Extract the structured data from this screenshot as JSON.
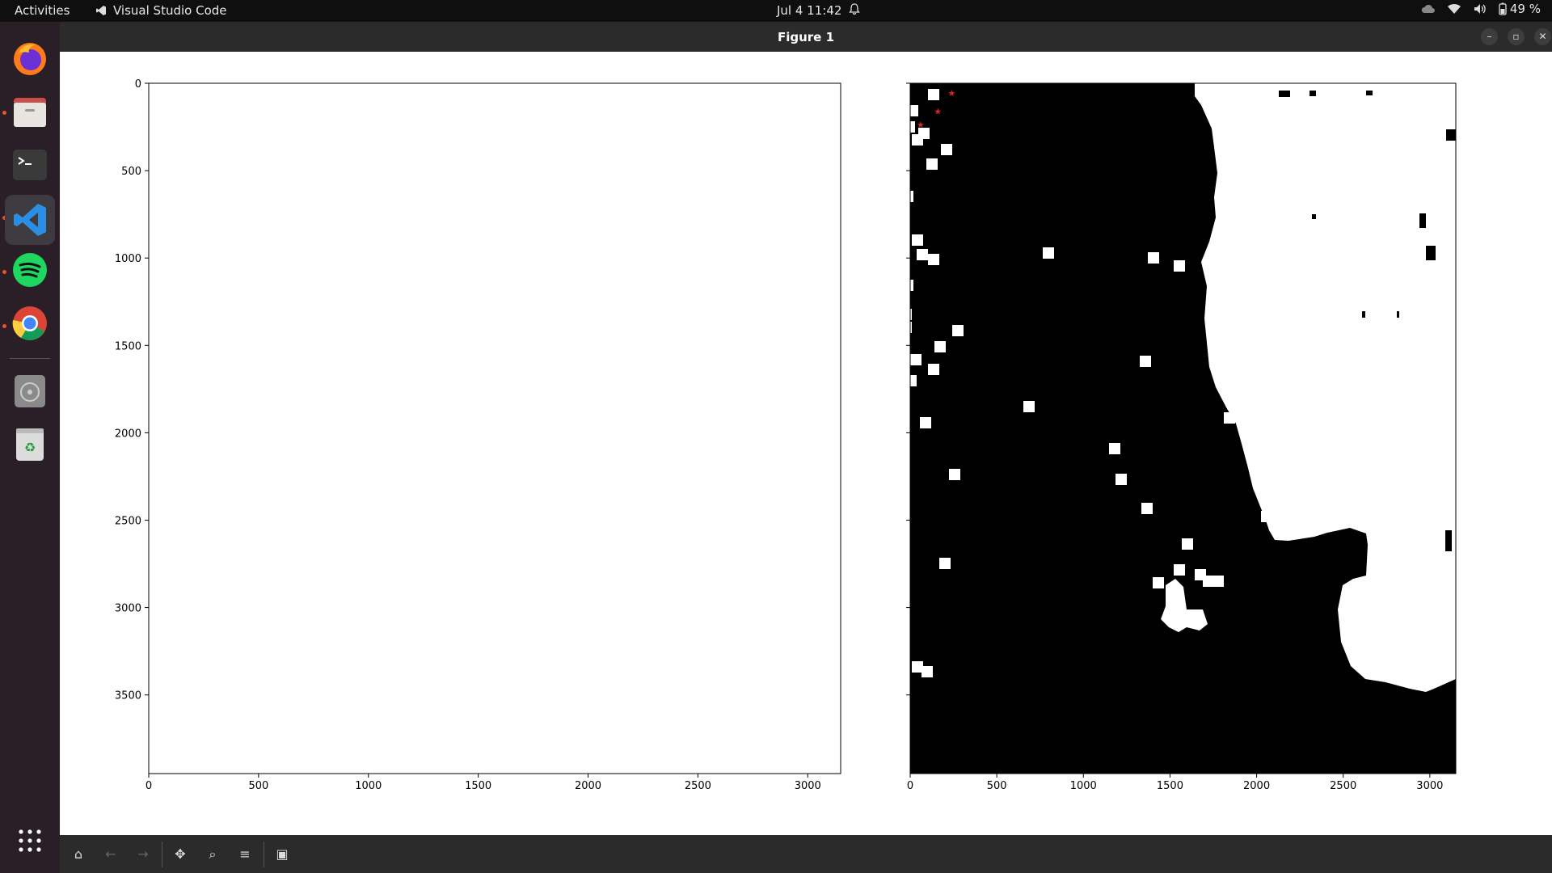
{
  "topbar": {
    "activities": "Activities",
    "app_name": "Visual Studio Code",
    "clock": "Jul 4  11:42",
    "battery": "49 %"
  },
  "dock": {
    "items": [
      {
        "icon": "firefox-icon",
        "running": true
      },
      {
        "icon": "files-icon",
        "running": true
      },
      {
        "icon": "terminal-icon",
        "running": false
      },
      {
        "icon": "vscode-icon",
        "running": true,
        "active": true
      },
      {
        "icon": "spotify-icon",
        "running": true
      },
      {
        "icon": "chrome-icon",
        "running": true
      },
      {
        "icon": "disc-icon",
        "running": false
      },
      {
        "icon": "trash-icon",
        "running": false
      }
    ],
    "apps_grid_icon": "apps-grid-icon"
  },
  "window": {
    "title": "Figure 1"
  },
  "chart_data": [
    {
      "type": "image",
      "xlim": [
        0,
        3150
      ],
      "ylim": [
        3950,
        0
      ],
      "x_ticks": [
        "0",
        "500",
        "1000",
        "1500",
        "2000",
        "2500",
        "3000"
      ],
      "y_ticks": [
        "0",
        "500",
        "1000",
        "1500",
        "2000",
        "2500",
        "3000",
        "3500"
      ],
      "content": "blank"
    },
    {
      "type": "image",
      "xlim": [
        0,
        3150
      ],
      "ylim": [
        3950,
        0
      ],
      "x_ticks": [
        "0",
        "500",
        "1000",
        "1500",
        "2000",
        "2500",
        "3000"
      ],
      "y_ticks": [],
      "content": "binary mask",
      "markers": [
        [
          240,
          55
        ],
        [
          160,
          160
        ],
        [
          60,
          235
        ]
      ],
      "marker_color": "#d62728"
    }
  ],
  "toolbar": {
    "buttons": [
      "home-icon",
      "back-icon",
      "forward-icon",
      "pan-icon",
      "zoom-icon",
      "configure-subplots-icon",
      "save-icon"
    ]
  }
}
